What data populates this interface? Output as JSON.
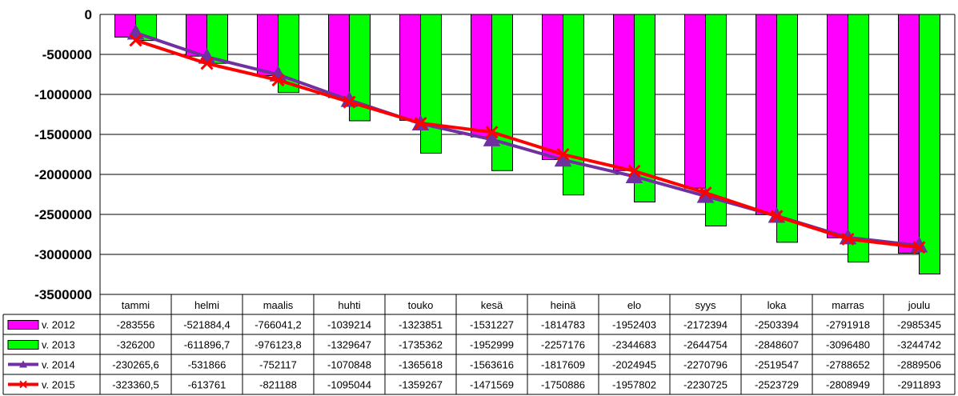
{
  "chart_data": {
    "type": "bar",
    "title": "",
    "xlabel": "",
    "ylabel": "",
    "ylim": [
      -3500000,
      0
    ],
    "yticks": [
      0,
      -500000,
      -1000000,
      -1500000,
      -2000000,
      -2500000,
      -3000000,
      -3500000
    ],
    "ytick_labels": [
      "0",
      "-500000",
      "-1000000",
      "-1500000",
      "-2000000",
      "-2500000",
      "-3000000",
      "-3500000"
    ],
    "grid": true,
    "legend_placement": "data-table-left",
    "categories": [
      "tammi",
      "helmi",
      "maalis",
      "huhti",
      "touko",
      "kesä",
      "heinä",
      "elo",
      "syys",
      "loka",
      "marras",
      "joulu"
    ],
    "series": [
      {
        "name": "v. 2012",
        "type": "bar",
        "color": "#ff00ff",
        "values": [
          -283556,
          -521884.4,
          -766041.2,
          -1039214,
          -1323851,
          -1531227,
          -1814783,
          -1952403,
          -2172394,
          -2503394,
          -2791918,
          -2985345
        ],
        "labels": [
          "-283556",
          "-521884,4",
          "-766041,2",
          "-1039214",
          "-1323851",
          "-1531227",
          "-1814783",
          "-1952403",
          "-2172394",
          "-2503394",
          "-2791918",
          "-2985345"
        ]
      },
      {
        "name": "v. 2013",
        "type": "bar",
        "color": "#00ff00",
        "values": [
          -326200,
          -611896.7,
          -976123.8,
          -1329647,
          -1735362,
          -1952999,
          -2257176,
          -2344683,
          -2644754,
          -2848607,
          -3096480,
          -3244742
        ],
        "labels": [
          "-326200",
          "-611896,7",
          "-976123,8",
          "-1329647",
          "-1735362",
          "-1952999",
          "-2257176",
          "-2344683",
          "-2644754",
          "-2848607",
          "-3096480",
          "-3244742"
        ]
      },
      {
        "name": "v. 2014",
        "type": "line",
        "color": "#7030a0",
        "marker": "triangle",
        "values": [
          -230265.6,
          -531866,
          -752117,
          -1070848,
          -1365618,
          -1563616,
          -1817609,
          -2024945,
          -2270796,
          -2519547,
          -2788652,
          -2889506
        ],
        "labels": [
          "-230265,6",
          "-531866",
          "-752117",
          "-1070848",
          "-1365618",
          "-1563616",
          "-1817609",
          "-2024945",
          "-2270796",
          "-2519547",
          "-2788652",
          "-2889506"
        ]
      },
      {
        "name": "v. 2015",
        "type": "line",
        "color": "#ff0000",
        "marker": "x",
        "values": [
          -323360.5,
          -613761,
          -821188,
          -1095044,
          -1359267,
          -1471569,
          -1750886,
          -1957802,
          -2230725,
          -2523729,
          -2808949,
          -2911893
        ],
        "labels": [
          "-323360,5",
          "-613761",
          "-821188",
          "-1095044",
          "-1359267",
          "-1471569",
          "-1750886",
          "-1957802",
          "-2230725",
          "-2523729",
          "-2808949",
          "-2911893"
        ]
      }
    ]
  }
}
